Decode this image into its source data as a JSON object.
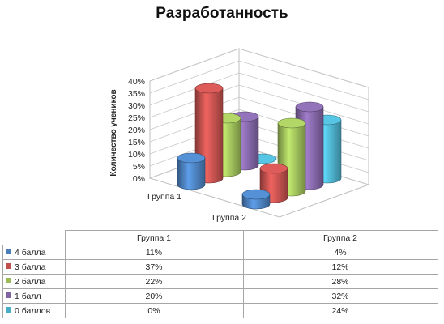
{
  "title": "Разработанность",
  "chart_data": {
    "type": "bar",
    "title": "Разработанность",
    "ylabel": "Количество учеников",
    "ylim": [
      0,
      40
    ],
    "yticks": [
      "0%",
      "5%",
      "10%",
      "15%",
      "20%",
      "25%",
      "30%",
      "35%",
      "40%"
    ],
    "categories": [
      "Группа 1",
      "Группа 2"
    ],
    "series": [
      {
        "name": "4 балла",
        "values": [
          11,
          4
        ],
        "labels": [
          "11%",
          "4%"
        ],
        "color": "#4a7ebb"
      },
      {
        "name": "3 балла",
        "values": [
          37,
          12
        ],
        "labels": [
          "37%",
          "12%"
        ],
        "color": "#c0504d"
      },
      {
        "name": "2 балла",
        "values": [
          22,
          28
        ],
        "labels": [
          "22%",
          "28%"
        ],
        "color": "#9bbb59"
      },
      {
        "name": "1 балл",
        "values": [
          20,
          32
        ],
        "labels": [
          "20%",
          "32%"
        ],
        "color": "#8064a2"
      },
      {
        "name": "0 баллов",
        "values": [
          0,
          24
        ],
        "labels": [
          "0%",
          "24%"
        ],
        "color": "#4bacc6"
      }
    ],
    "grid": true,
    "legend": "table-below"
  }
}
